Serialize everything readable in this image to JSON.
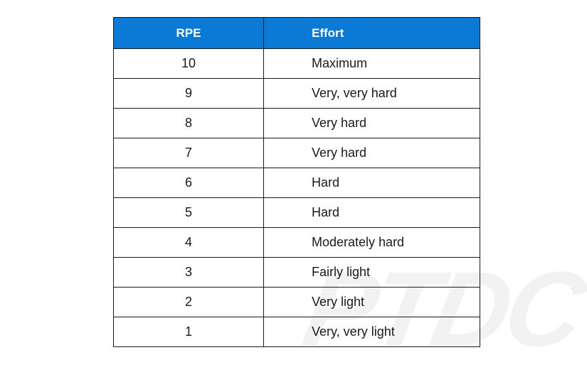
{
  "table": {
    "headers": {
      "rpe": "RPE",
      "effort": "Effort"
    },
    "rows": [
      {
        "rpe": "10",
        "effort": "Maximum"
      },
      {
        "rpe": "9",
        "effort": "Very, very hard"
      },
      {
        "rpe": "8",
        "effort": "Very hard"
      },
      {
        "rpe": "7",
        "effort": "Very hard"
      },
      {
        "rpe": "6",
        "effort": "Hard"
      },
      {
        "rpe": "5",
        "effort": "Hard"
      },
      {
        "rpe": "4",
        "effort": "Moderately hard"
      },
      {
        "rpe": "3",
        "effort": "Fairly light"
      },
      {
        "rpe": "2",
        "effort": "Very light"
      },
      {
        "rpe": "1",
        "effort": "Very, very light"
      }
    ]
  },
  "watermark": {
    "text": "PTDC"
  },
  "colors": {
    "header_bg": "#0a7ad6",
    "header_text": "#ffffff",
    "border": "#1a1a1a"
  }
}
